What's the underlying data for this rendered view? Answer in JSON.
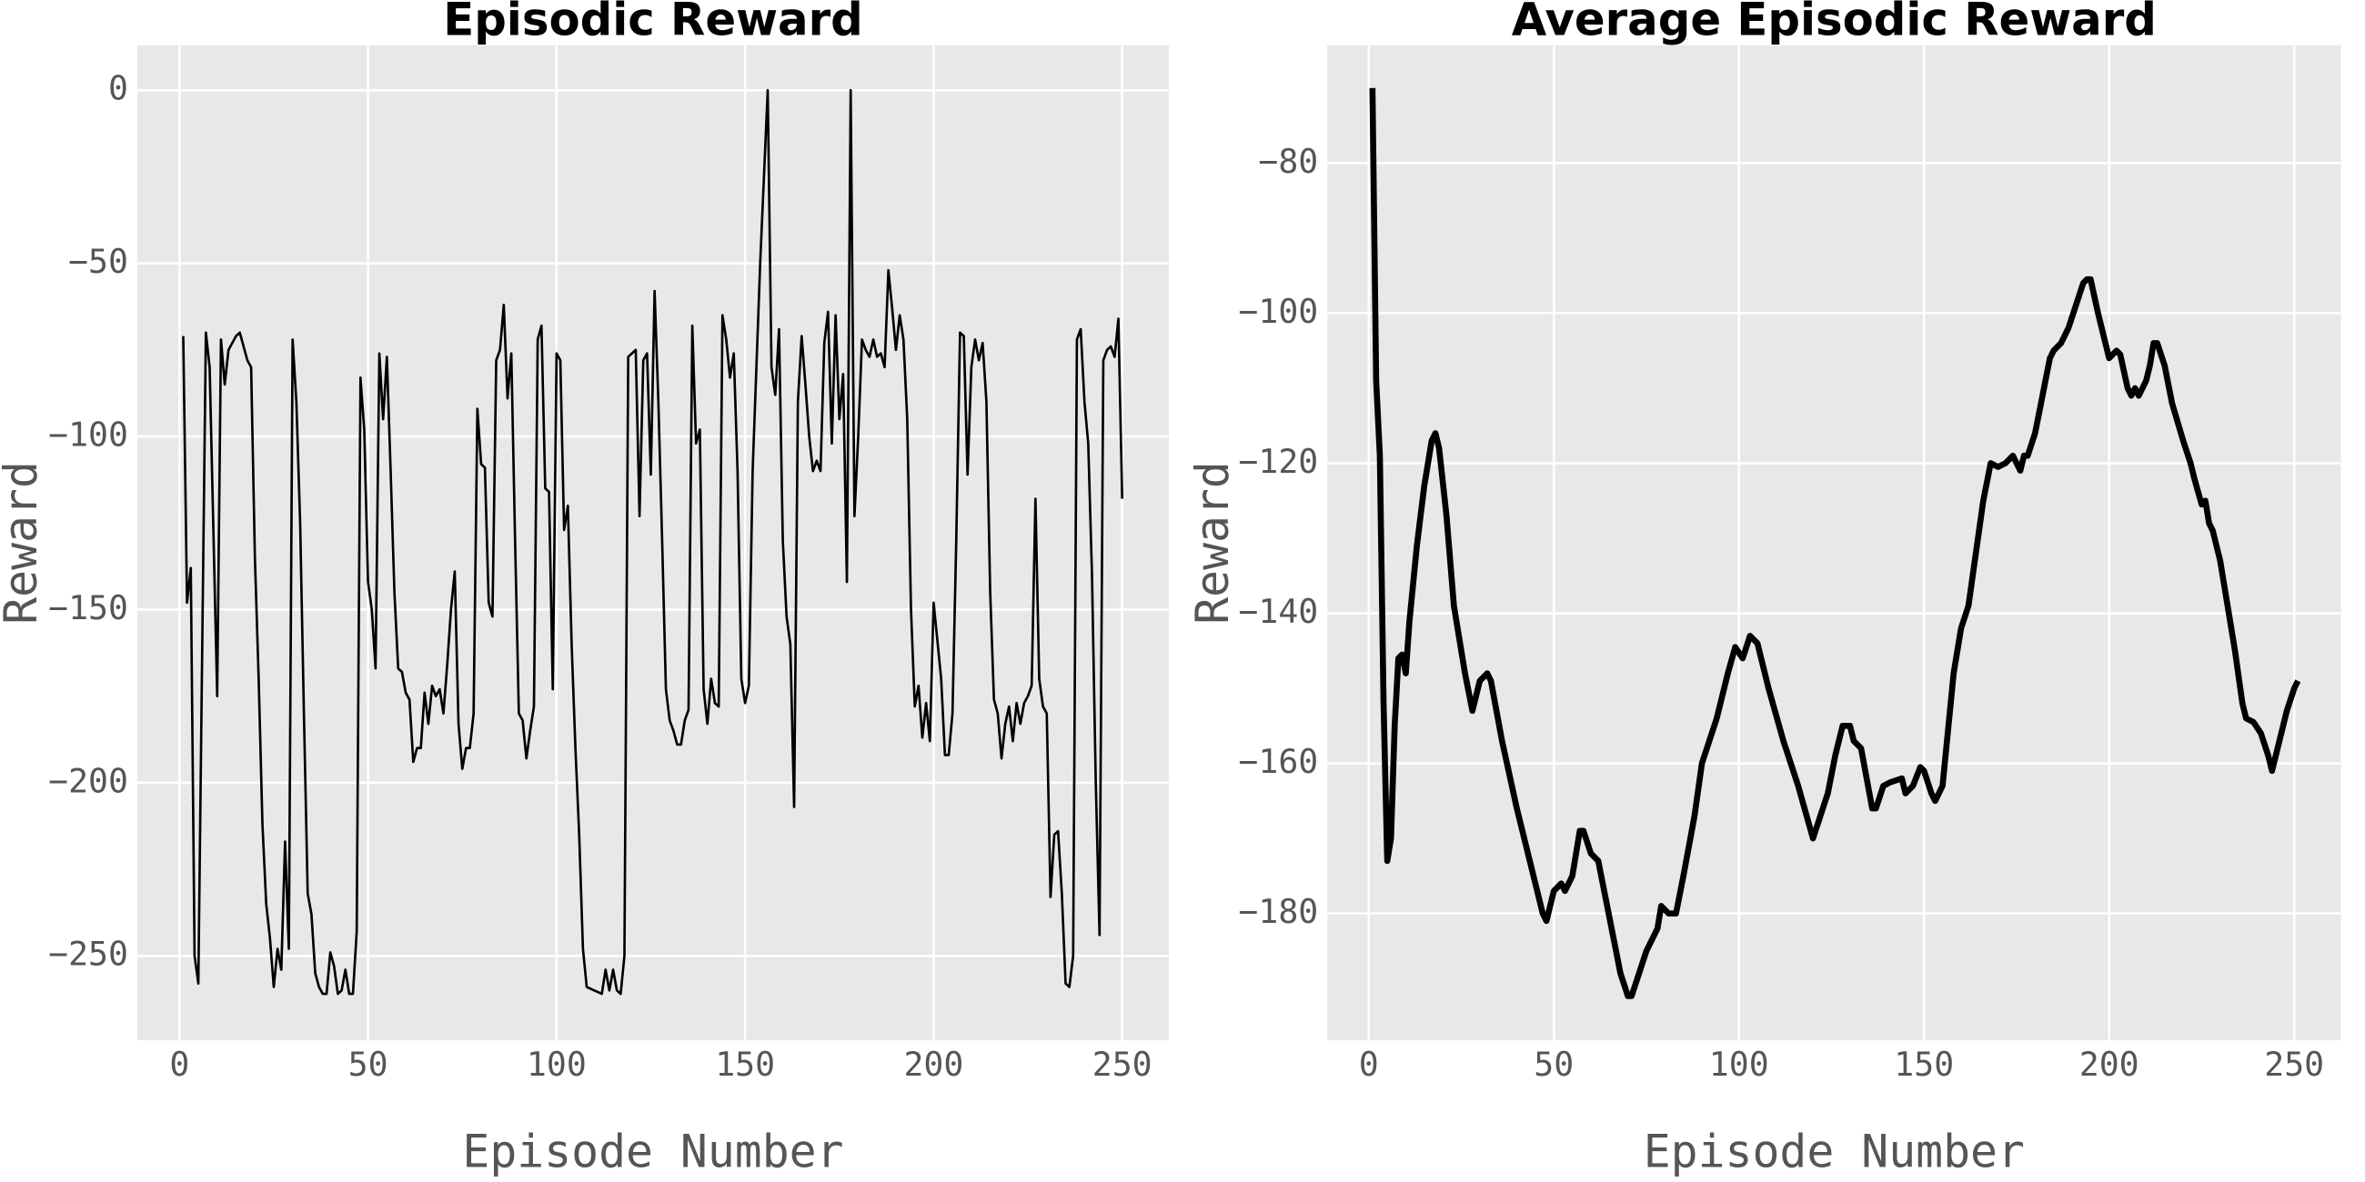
{
  "chart_data": [
    {
      "type": "line",
      "title": "Episodic Reward",
      "xlabel": "Episode Number",
      "ylabel": "Reward",
      "xlim": [
        -11.2,
        262.4
      ],
      "ylim": [
        -274.4,
        13
      ],
      "grid": true,
      "xticks": [
        0,
        50,
        100,
        150,
        200,
        250
      ],
      "yticks": [
        0,
        {
          "value": -50,
          "label": "−50"
        },
        {
          "value": -100,
          "label": "−100"
        },
        {
          "value": -150,
          "label": "−150"
        },
        {
          "value": -200,
          "label": "−200"
        },
        {
          "value": -250,
          "label": "−250"
        }
      ],
      "x": [
        1,
        2,
        3,
        4,
        5,
        7,
        8,
        10,
        11,
        12,
        13,
        15,
        16,
        18,
        19,
        20,
        21,
        22,
        23,
        24,
        25,
        26,
        27,
        28,
        29,
        30,
        31,
        32,
        33,
        34,
        35,
        36,
        37,
        38,
        39,
        40,
        41,
        42,
        43,
        44,
        45,
        46,
        47,
        48,
        49,
        50,
        51,
        52,
        53,
        54,
        55,
        56,
        57,
        58,
        59,
        60,
        61,
        62,
        63,
        64,
        65,
        66,
        67,
        68,
        69,
        70,
        71,
        72,
        73,
        74,
        75,
        76,
        77,
        78,
        79,
        80,
        81,
        82,
        83,
        84,
        85,
        86,
        87,
        88,
        89,
        90,
        91,
        92,
        93,
        94,
        95,
        96,
        97,
        98,
        99,
        100,
        101,
        102,
        103,
        104,
        105,
        106,
        107,
        108,
        110,
        112,
        113,
        114,
        115,
        116,
        117,
        118,
        119,
        120,
        121,
        122,
        123,
        124,
        125,
        126,
        127,
        128,
        129,
        130,
        131,
        132,
        133,
        134,
        135,
        136,
        137,
        138,
        139,
        140,
        141,
        142,
        143,
        144,
        145,
        146,
        147,
        148,
        149,
        150,
        151,
        152,
        154,
        156,
        157,
        158,
        159,
        160,
        161,
        162,
        163,
        164,
        165,
        166,
        167,
        168,
        169,
        170,
        171,
        172,
        173,
        174,
        175,
        176,
        177,
        178,
        179,
        180,
        181,
        182,
        183,
        184,
        185,
        186,
        187,
        188,
        189,
        190,
        191,
        192,
        193,
        194,
        195,
        196,
        197,
        198,
        199,
        200,
        202,
        203,
        204,
        205,
        206,
        207,
        208,
        209,
        210,
        211,
        212,
        213,
        214,
        215,
        216,
        217,
        218,
        219,
        220,
        221,
        222,
        223,
        224,
        225,
        226,
        227,
        228,
        229,
        230,
        231,
        232,
        233,
        234,
        235,
        236,
        237,
        238,
        239,
        240,
        241,
        242,
        243,
        244,
        245,
        246,
        247,
        248,
        249,
        250
      ],
      "series": [
        {
          "color": "#000000",
          "values": [
            -71,
            -148,
            -138,
            -250,
            -258,
            -70,
            -80,
            -175,
            -72,
            -85,
            -75,
            -71,
            -70,
            -78,
            -80,
            -135,
            -170,
            -212,
            -235,
            -245,
            -259,
            -248,
            -254,
            -217,
            -248,
            -72,
            -90,
            -125,
            -180,
            -232,
            -238,
            -255,
            -259,
            -261,
            -261,
            -249,
            -253,
            -261,
            -260,
            -254,
            -261,
            -261,
            -243,
            -83,
            -98,
            -142,
            -150,
            -167,
            -76,
            -95,
            -77,
            -110,
            -145,
            -167,
            -168,
            -174,
            -176,
            -194,
            -190,
            -190,
            -174,
            -183,
            -172,
            -175,
            -173,
            -180,
            -166,
            -150,
            -139,
            -183,
            -196,
            -190,
            -190,
            -180,
            -92,
            -108,
            -109,
            -148,
            -152,
            -78,
            -75,
            -62,
            -89,
            -76,
            -130,
            -180,
            -182,
            -193,
            -185,
            -178,
            -72,
            -68,
            -115,
            -116,
            -173,
            -76,
            -78,
            -127,
            -120,
            -160,
            -190,
            -215,
            -248,
            -259,
            -260,
            -261,
            -254,
            -260,
            -254,
            -260,
            -261,
            -250,
            -77,
            -76,
            -75,
            -123,
            -78,
            -76,
            -111,
            -58,
            -90,
            -130,
            -173,
            -182,
            -185,
            -189,
            -189,
            -182,
            -179,
            -68,
            -102,
            -98,
            -173,
            -183,
            -170,
            -177,
            -178,
            -65,
            -72,
            -83,
            -76,
            -110,
            -170,
            -177,
            -172,
            -110,
            -50,
            0,
            -80,
            -88,
            -69,
            -130,
            -152,
            -160,
            -207,
            -90,
            -71,
            -85,
            -100,
            -110,
            -107,
            -110,
            -73,
            -64,
            -102,
            -65,
            -95,
            -82,
            -142,
            0,
            -123,
            -100,
            -72,
            -75,
            -77,
            -72,
            -77,
            -76,
            -80,
            -52,
            -63,
            -75,
            -65,
            -72,
            -95,
            -150,
            -178,
            -172,
            -187,
            -177,
            -188,
            -148,
            -170,
            -192,
            -192,
            -180,
            -130,
            -70,
            -71,
            -111,
            -80,
            -72,
            -78,
            -73,
            -90,
            -145,
            -176,
            -180,
            -193,
            -183,
            -178,
            -188,
            -177,
            -183,
            -177,
            -175,
            -172,
            -118,
            -170,
            -178,
            -180,
            -233,
            -215,
            -214,
            -232,
            -258,
            -259,
            -250,
            -72,
            -69,
            -90,
            -102,
            -140,
            -200,
            -244,
            -78,
            -75,
            -74,
            -77,
            -66,
            -118
          ]
        }
      ]
    },
    {
      "type": "line",
      "title": "Average Episodic Reward",
      "xlabel": "Episode Number",
      "ylabel": "Reward",
      "xlim": [
        -11.2,
        262.6
      ],
      "ylim": [
        -196.9,
        -64.3
      ],
      "grid": true,
      "xticks": [
        0,
        50,
        100,
        150,
        200,
        250
      ],
      "yticks": [
        {
          "value": -180,
          "label": "−180"
        },
        {
          "value": -160,
          "label": "−160"
        },
        {
          "value": -140,
          "label": "−140"
        },
        {
          "value": -120,
          "label": "−120"
        },
        {
          "value": -100,
          "label": "−100"
        },
        {
          "value": -80,
          "label": "−80"
        }
      ],
      "x": [
        1,
        2,
        3,
        4,
        5,
        6,
        7,
        8,
        9,
        10,
        11,
        13,
        15,
        17,
        18,
        19,
        21,
        23,
        26,
        28,
        30,
        32,
        33,
        36,
        40,
        44,
        47,
        48,
        50,
        52,
        53,
        55,
        57,
        58,
        60,
        62,
        64,
        66,
        68,
        70,
        71,
        73,
        75,
        78,
        79,
        81,
        83,
        85,
        88,
        90,
        94,
        97,
        99,
        101,
        103,
        105,
        108,
        112,
        116,
        120,
        122,
        124,
        126,
        128,
        130,
        131,
        133,
        136,
        137,
        139,
        141,
        144,
        145,
        147,
        149,
        150,
        152,
        153,
        155,
        156,
        158,
        160,
        162,
        164,
        166,
        168,
        170,
        172,
        174,
        175,
        176,
        177,
        178,
        180,
        182,
        184,
        185,
        187,
        189,
        191,
        193,
        194,
        195,
        197,
        199,
        200,
        202,
        203,
        205,
        206,
        207,
        208,
        210,
        211,
        212,
        213,
        215,
        217,
        220,
        222,
        223,
        225,
        226,
        227,
        228,
        230,
        232,
        234,
        236,
        237,
        239,
        241,
        243,
        244,
        246,
        248,
        250,
        251
      ],
      "series": [
        {
          "color": "#000000",
          "values": [
            -70,
            -109,
            -119,
            -152,
            -173,
            -170,
            -155,
            -146,
            -145.5,
            -148,
            -141,
            -131,
            -123,
            -117,
            -116,
            -118,
            -127,
            -139,
            -148,
            -153,
            -149,
            -148,
            -149,
            -157,
            -166,
            -174,
            -180,
            -181,
            -177,
            -176,
            -177,
            -175,
            -169,
            -169,
            -172,
            -173,
            -178,
            -183,
            -188,
            -191,
            -191,
            -188,
            -185,
            -182,
            -179,
            -180,
            -180,
            -175,
            -167,
            -160,
            -154,
            -148,
            -144.5,
            -146,
            -143,
            -144,
            -150,
            -157,
            -163,
            -170,
            -167,
            -164,
            -159,
            -155,
            -155,
            -157,
            -158,
            -166,
            -166,
            -163,
            -162.5,
            -162,
            -164,
            -163,
            -160.5,
            -161,
            -164,
            -165,
            -163,
            -158,
            -148,
            -142,
            -139,
            -132,
            -125,
            -120,
            -120.5,
            -120,
            -119,
            -120,
            -121,
            -119,
            -119,
            -116,
            -111,
            -106,
            -105,
            -104,
            -102,
            -99,
            -96,
            -95.5,
            -95.5,
            -100,
            -104,
            -106,
            -105,
            -105.5,
            -110,
            -111,
            -110,
            -111,
            -109,
            -107,
            -104,
            -104,
            -107,
            -112,
            -117,
            -120,
            -122,
            -125.5,
            -125,
            -128,
            -129,
            -133,
            -139,
            -145,
            -152,
            -154,
            -154.5,
            -156,
            -159,
            -161,
            -157,
            -153,
            -150,
            -149
          ]
        }
      ]
    }
  ]
}
